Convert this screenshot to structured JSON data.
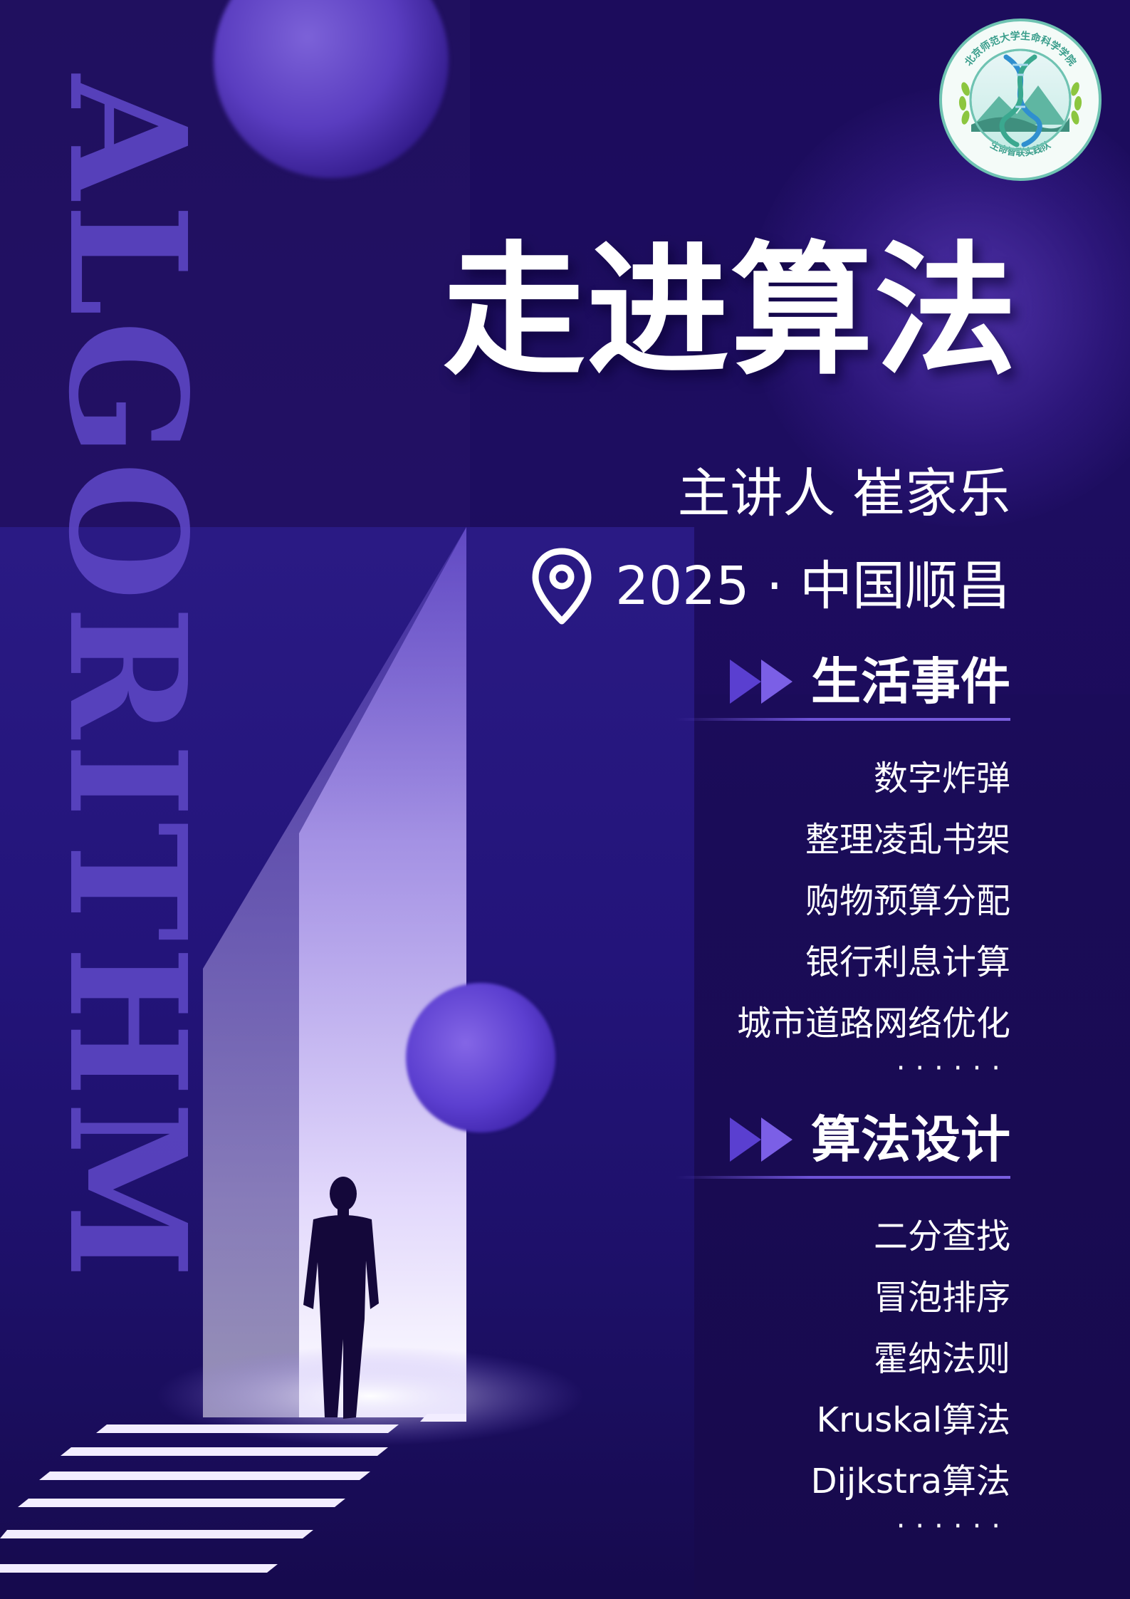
{
  "vertical_word": "ALGORITHM",
  "logo": {
    "ring_text_top": "北京师范大学生命科学学院",
    "ring_text_bottom": "生命智联实践队"
  },
  "title": "走进算法",
  "speaker": "主讲人 崔家乐",
  "location": {
    "icon": "location-pin-icon",
    "text": "2025 · 中国顺昌"
  },
  "sections": [
    {
      "icon": "double-arrow-icon",
      "title": "生活事件",
      "items": [
        "数字炸弹",
        "整理凌乱书架",
        "购物预算分配",
        "银行利息计算",
        "城市道路网络优化"
      ],
      "ellipsis": "······"
    },
    {
      "icon": "double-arrow-icon",
      "title": "算法设计",
      "items": [
        "二分查找",
        "冒泡排序",
        "霍纳法则",
        "Kruskal算法",
        "Dijkstra算法"
      ],
      "ellipsis": "······"
    }
  ],
  "colors": {
    "background": "#1c0c5c",
    "accent": "#6d52d6",
    "watermark": "#5b45c2",
    "text": "#ffffff"
  }
}
